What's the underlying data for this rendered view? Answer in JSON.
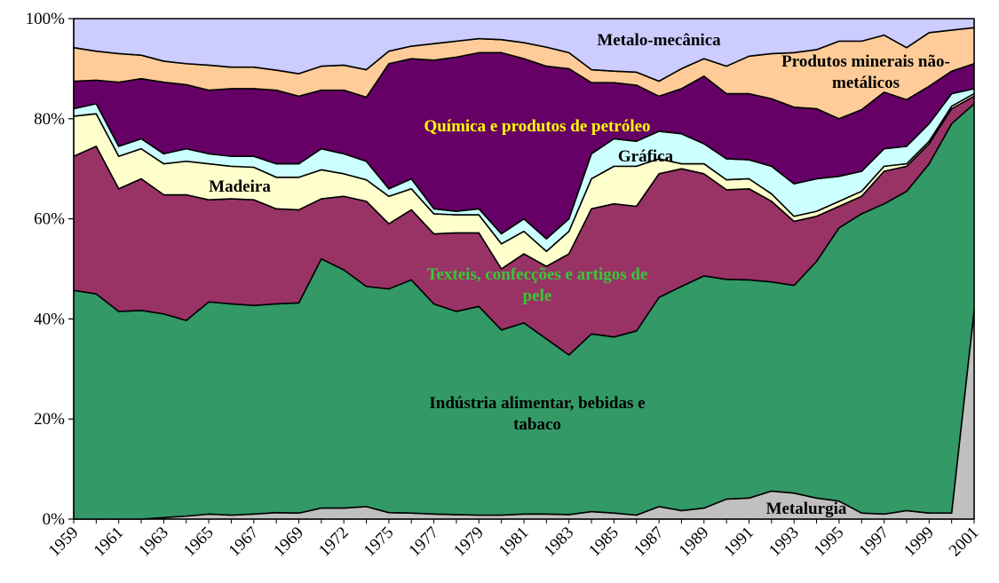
{
  "chart_data": {
    "type": "stacked_area",
    "categories": [
      "1959",
      null,
      "1961",
      null,
      "1963",
      null,
      "1965",
      null,
      "1967",
      null,
      "1969",
      null,
      "1972",
      null,
      "1975",
      null,
      "1977",
      null,
      "1979",
      null,
      "1981",
      null,
      "1983",
      null,
      "1985",
      null,
      "1987",
      null,
      "1989",
      null,
      "1991",
      null,
      "1993",
      null,
      "1995",
      null,
      "1997",
      null,
      "1999",
      null,
      "2001"
    ],
    "ylim": [
      0,
      100
    ],
    "yticks": [
      {
        "value": 0,
        "label": "0%"
      },
      {
        "value": 20,
        "label": "20%"
      },
      {
        "value": 40,
        "label": "40%"
      },
      {
        "value": 60,
        "label": "60%"
      },
      {
        "value": 80,
        "label": "80%"
      },
      {
        "value": 100,
        "label": "100%"
      }
    ],
    "series": [
      {
        "name": "Metalurgia",
        "color": "#c0c0c0",
        "label_color": "#000000",
        "values": [
          0,
          0,
          0,
          0,
          0.3,
          0.6,
          1,
          0.8,
          1,
          1.3,
          1.2,
          2.2,
          2.2,
          2.5,
          1.3,
          1.2,
          1,
          0.9,
          0.8,
          0.8,
          1,
          1,
          0.9,
          1.5,
          1.2,
          0.8,
          2.5,
          1.7,
          2.2,
          4,
          4.2,
          5.6,
          5.2,
          4.2,
          3.6,
          1.2,
          1,
          1.7,
          1.2,
          1.2,
          41.7
        ]
      },
      {
        "name": "Indústria alimentar, bebidas e tabaco",
        "color": "#339966",
        "label_color": "#000000",
        "values": [
          45.7,
          45,
          41.5,
          41.7,
          40.7,
          39.1,
          42.4,
          42.2,
          41.7,
          41.7,
          42,
          49.8,
          47.6,
          44,
          44.7,
          46.6,
          42,
          40.6,
          41.7,
          37,
          38.2,
          35,
          31.9,
          35.5,
          35.2,
          36.8,
          41.8,
          44.8,
          46.4,
          43.9,
          43.6,
          41.8,
          41.5,
          47.3,
          54.6,
          59.8,
          62,
          63.8,
          69.8,
          77.8,
          41.3
        ]
      },
      {
        "name": "Texteis, confecções e artigos de pele",
        "color": "#993366",
        "label_color": "#33cc33",
        "values": [
          26.8,
          29.5,
          24.5,
          26.3,
          23.8,
          25.1,
          20.4,
          21,
          21.1,
          19,
          18.6,
          12,
          14.7,
          17,
          13,
          14,
          14,
          15.7,
          14.7,
          12.2,
          13.8,
          14.5,
          20.2,
          25,
          26.6,
          24.9,
          24.7,
          23.5,
          20.4,
          17.9,
          18.2,
          16.1,
          12.8,
          9,
          4.3,
          3.5,
          6.5,
          5,
          4,
          3,
          1.5
        ]
      },
      {
        "name": "Madeira",
        "color": "#ffffcc",
        "label_color": "#000000",
        "values": [
          8,
          6.5,
          6.5,
          6,
          6.2,
          6.7,
          7.2,
          6.5,
          6.5,
          6.3,
          6.5,
          5.8,
          4.5,
          4.3,
          5.5,
          4.2,
          4,
          3.6,
          3.6,
          5,
          4.5,
          3,
          4.5,
          6,
          7.5,
          8,
          3,
          1,
          2,
          2,
          2,
          1.5,
          1,
          1,
          1,
          1,
          1,
          0.5,
          0.5,
          0.5,
          0.5
        ]
      },
      {
        "name": "Gráfica",
        "color": "#ccffff",
        "label_color": "#000000",
        "values": [
          1.5,
          2,
          2,
          2,
          2,
          2.5,
          2,
          2,
          2.2,
          2.7,
          2.7,
          4.2,
          4,
          3.7,
          1.5,
          2,
          1,
          0.7,
          1.2,
          2,
          2.5,
          2.5,
          2.5,
          5,
          5.5,
          5,
          5.5,
          6,
          4,
          4.2,
          3.8,
          5.5,
          6.5,
          6.5,
          5,
          4,
          3.5,
          3.5,
          3.5,
          2.5,
          1
        ]
      },
      {
        "name": "Química e produtos de petróleo",
        "color": "#660066",
        "label_color": "#ffff00",
        "values": [
          5.5,
          4.7,
          12.8,
          12,
          14.3,
          12.8,
          12.7,
          13.5,
          13.5,
          14.7,
          13.5,
          11.7,
          12.7,
          12.8,
          25,
          24,
          29.7,
          30.8,
          31.2,
          36.2,
          32,
          34.5,
          30,
          14.2,
          11.2,
          11.2,
          7,
          9,
          13.5,
          13,
          13.2,
          13.5,
          15.3,
          14,
          11.5,
          12.3,
          11.3,
          9.3,
          7.5,
          4.5,
          5
        ]
      },
      {
        "name": "Produtos minerais não-metálicos",
        "color": "#ffcc99",
        "label_color": "#000000",
        "values": [
          6.7,
          5.8,
          5.7,
          4.7,
          4.2,
          4.2,
          5,
          4.3,
          4.3,
          4,
          4.5,
          4.8,
          5,
          5.5,
          2.5,
          2.5,
          3.3,
          3.2,
          2.8,
          2.6,
          3.2,
          3.8,
          3.2,
          2.6,
          2.3,
          2.6,
          3,
          4,
          3.5,
          5.5,
          7.5,
          9,
          10.9,
          11.8,
          15.5,
          13.7,
          11.4,
          10.4,
          10.7,
          8.2,
          7.2
        ]
      },
      {
        "name": "Metalo-mecânica",
        "color": "#ccccff",
        "label_color": "#000000",
        "values": [
          5.8,
          6.5,
          7,
          7.3,
          8.5,
          9,
          9.3,
          9.7,
          9.7,
          10.3,
          11,
          9.5,
          9.3,
          10.2,
          6.5,
          5.5,
          5,
          4.5,
          4,
          4.2,
          4.8,
          5.7,
          6.8,
          10.2,
          10.5,
          10.7,
          12.5,
          10,
          8,
          9.5,
          7.5,
          7,
          6.8,
          6.2,
          4.5,
          4.5,
          3.3,
          5.8,
          2.8,
          2.3,
          1.8
        ]
      }
    ]
  }
}
